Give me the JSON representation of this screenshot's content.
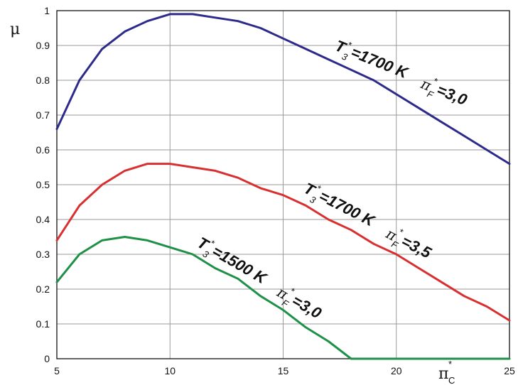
{
  "chart_data": {
    "type": "line",
    "ylabel": "μ",
    "xlabel": {
      "symbol": "π",
      "sup": "*",
      "sub": "C"
    },
    "xlim": [
      5,
      25
    ],
    "ylim": [
      0,
      1
    ],
    "xticks": [
      5,
      10,
      15,
      20,
      25
    ],
    "yticks": [
      0,
      0.1,
      0.2,
      0.3,
      0.4,
      0.5,
      0.6,
      0.7,
      0.8,
      0.9,
      1
    ],
    "ytick_labels": [
      "0",
      "0.1",
      "0.2",
      "0.3",
      "0.4",
      "0.5",
      "0.6",
      "0.7",
      "0.8",
      "0.9",
      "1"
    ],
    "grid": true,
    "series": [
      {
        "color": "#2e2a8c",
        "label": {
          "T": "T",
          "T_sub": "3",
          "T_sup": "*",
          "T_val": "=1700 K",
          "pi": "π",
          "pi_sub": "F",
          "pi_sup": "*",
          "pi_val": "=3,0"
        },
        "x": [
          5,
          6,
          7,
          8,
          9,
          10,
          11,
          12,
          13,
          14,
          15,
          16,
          17,
          18,
          19,
          20,
          21,
          22,
          23,
          24,
          25
        ],
        "y": [
          0.66,
          0.8,
          0.89,
          0.94,
          0.97,
          0.99,
          0.99,
          0.98,
          0.97,
          0.95,
          0.92,
          0.89,
          0.86,
          0.83,
          0.8,
          0.76,
          0.72,
          0.68,
          0.64,
          0.6,
          0.56
        ]
      },
      {
        "color": "#d83030",
        "label": {
          "T": "T",
          "T_sub": "3",
          "T_sup": "*",
          "T_val": "=1700 K",
          "pi": "π",
          "pi_sub": "F",
          "pi_sup": "*",
          "pi_val": "=3,5"
        },
        "x": [
          5,
          6,
          7,
          8,
          9,
          10,
          11,
          12,
          13,
          14,
          15,
          16,
          17,
          18,
          19,
          20,
          21,
          22,
          23,
          24,
          25
        ],
        "y": [
          0.34,
          0.44,
          0.5,
          0.54,
          0.56,
          0.56,
          0.55,
          0.54,
          0.52,
          0.49,
          0.47,
          0.44,
          0.4,
          0.37,
          0.33,
          0.3,
          0.26,
          0.22,
          0.18,
          0.15,
          0.11
        ]
      },
      {
        "color": "#1f9048",
        "label": {
          "T": "T",
          "T_sub": "3",
          "T_sup": "*",
          "T_val": "=1500 K",
          "pi": "π",
          "pi_sub": "F",
          "pi_sup": "*",
          "pi_val": "=3,0"
        },
        "x": [
          5,
          6,
          7,
          8,
          9,
          10,
          11,
          12,
          13,
          14,
          15,
          16,
          17,
          18,
          19,
          20,
          21,
          22,
          23,
          24,
          25
        ],
        "y": [
          0.22,
          0.3,
          0.34,
          0.35,
          0.34,
          0.32,
          0.3,
          0.26,
          0.23,
          0.18,
          0.14,
          0.09,
          0.05,
          0.0,
          0.0,
          0.0,
          0.0,
          0.0,
          0.0,
          0.0,
          0.0
        ]
      }
    ]
  }
}
